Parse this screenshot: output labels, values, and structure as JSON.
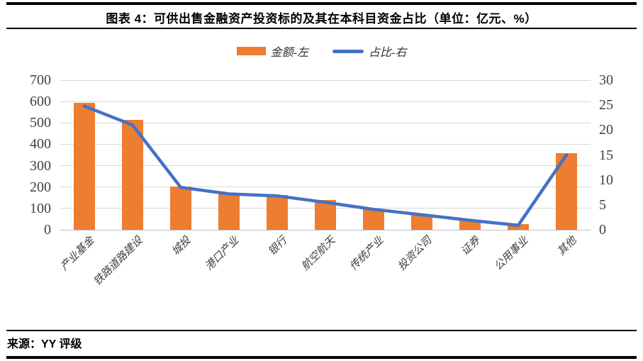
{
  "header": {
    "title": "图表 4：可供出售金融资产投资标的及其在本科目资金占比（单位：亿元、%）"
  },
  "footer": {
    "source": "来源：YY 评级"
  },
  "colors": {
    "bar": "#ED7D31",
    "line": "#4472C4",
    "gridline": "#D9D9D9",
    "axis_text": "#404040",
    "border": "#000000"
  },
  "chart_data": {
    "type": "bar",
    "subtype": "combo-bar-line-dual-axis",
    "title": "图表 4：可供出售金融资产投资标的及其在本科目资金占比（单位：亿元、%）",
    "categories": [
      "产业基金",
      "铁路道路建设",
      "城投",
      "港口产业",
      "银行",
      "航空航天",
      "传统产业",
      "投资公司",
      "证券",
      "公用事业",
      "其他"
    ],
    "series": [
      {
        "name": "金额-左",
        "type": "bar",
        "axis": "left",
        "color": "#ED7D31",
        "values": [
          595,
          515,
          203,
          168,
          162,
          138,
          95,
          70,
          45,
          25,
          358
        ]
      },
      {
        "name": "占比-右",
        "type": "line",
        "axis": "right",
        "color": "#4472C4",
        "values": [
          24.8,
          21.0,
          8.5,
          7.2,
          6.8,
          5.5,
          4.1,
          3.0,
          1.9,
          0.9,
          15.0
        ]
      }
    ],
    "left_axis": {
      "min": 0,
      "max": 700,
      "ticks": [
        0,
        100,
        200,
        300,
        400,
        500,
        600,
        700
      ]
    },
    "right_axis": {
      "min": 0,
      "max": 30,
      "ticks": [
        0,
        5,
        10,
        15,
        20,
        25,
        30
      ]
    },
    "legend_position": "top",
    "grid": true,
    "xlabel": "",
    "ylabel_left": "亿元",
    "ylabel_right": "%"
  }
}
